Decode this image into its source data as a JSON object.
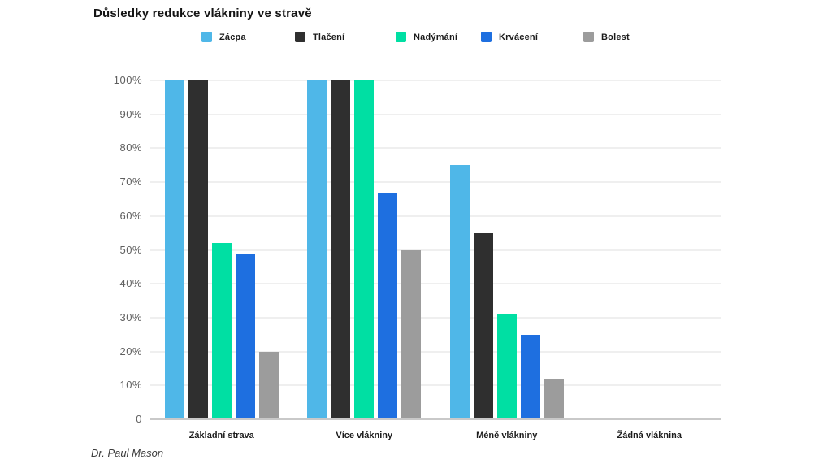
{
  "title": "Důsledky redukce vlákniny ve stravě",
  "footer": "Dr. Paul Mason",
  "legend": {
    "items": [
      "Zácpa",
      "Tlačení",
      "Nadýmání",
      "Krvácení",
      "Bolest"
    ]
  },
  "colors": {
    "zacpa": "#4FB7E8",
    "tlaceni": "#2F2F2F",
    "nadymani": "#00DFA3",
    "krvaceni": "#1E6FE0",
    "bolest": "#9C9C9C",
    "gridline": "#EFEFEF",
    "baseline": "#C9C9C9"
  },
  "chart_data": {
    "type": "bar",
    "title": "Důsledky redukce vlákniny ve stravě",
    "categories": [
      "Základní strava",
      "Více vlákniny",
      "Méně vlákniny",
      "Žádná vláknina"
    ],
    "series": [
      {
        "name": "Zácpa",
        "color": "#4FB7E8",
        "values": [
          100,
          100,
          75,
          0
        ]
      },
      {
        "name": "Tlačení",
        "color": "#2F2F2F",
        "values": [
          100,
          100,
          55,
          0
        ]
      },
      {
        "name": "Nadýmání",
        "color": "#00DFA3",
        "values": [
          52,
          100,
          31,
          0
        ]
      },
      {
        "name": "Krvácení",
        "color": "#1E6FE0",
        "values": [
          49,
          67,
          25,
          0
        ]
      },
      {
        "name": "Bolest",
        "color": "#9C9C9C",
        "values": [
          20,
          50,
          12,
          0
        ]
      }
    ],
    "yticks": [
      "100%",
      "90%",
      "80%",
      "70%",
      "60%",
      "50%",
      "40%",
      "30%",
      "20%",
      "10%",
      "0"
    ],
    "xlabel": "",
    "ylabel": "",
    "ylim": [
      0,
      100
    ],
    "grid": true,
    "legend_position": "top",
    "source": "Dr. Paul Mason"
  }
}
